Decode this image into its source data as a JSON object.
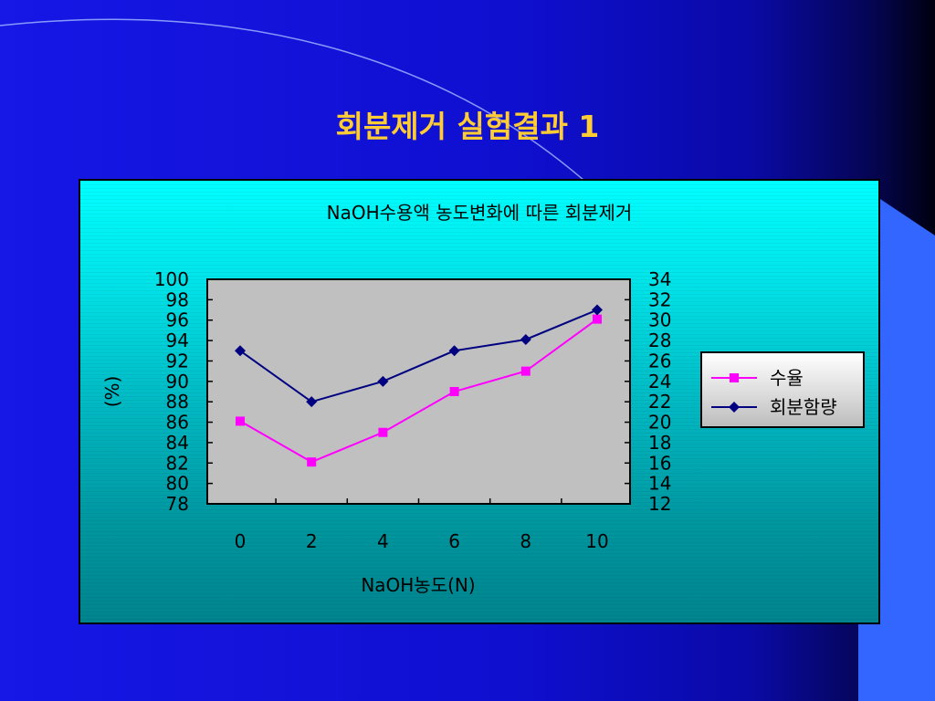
{
  "slide": {
    "title": "회분제거 실험결과 1"
  },
  "colors": {
    "title": "#ffcc33",
    "plot_background": "#c0c0c0",
    "series_yield": "#ff00ff",
    "series_ash": "#000080"
  },
  "chart_data": {
    "type": "line",
    "title": "NaOH수용액 농도변화에 따른 회분제거",
    "xlabel": "NaOH농도(N)",
    "ylabel": "(%)",
    "ylabel_right": "",
    "x": [
      0,
      2,
      4,
      6,
      8,
      10
    ],
    "xticks": [
      "0",
      "2",
      "4",
      "6",
      "8",
      "10"
    ],
    "ylim": [
      78,
      100
    ],
    "yticks": [
      78,
      80,
      82,
      84,
      86,
      88,
      90,
      92,
      94,
      96,
      98,
      100
    ],
    "y2lim": [
      12,
      34
    ],
    "y2ticks": [
      12,
      14,
      16,
      18,
      20,
      22,
      24,
      26,
      28,
      30,
      32,
      34
    ],
    "legend_position": "right",
    "grid": false,
    "series": [
      {
        "name": "수율",
        "axis": "left",
        "marker": "square",
        "color": "#ff00ff",
        "values": [
          86.1,
          82.1,
          85.0,
          89.0,
          91.0,
          96.1
        ]
      },
      {
        "name": "회분함량",
        "axis": "right",
        "marker": "diamond",
        "color": "#000080",
        "values": [
          27,
          22,
          24,
          27,
          28.1,
          31
        ]
      }
    ]
  }
}
